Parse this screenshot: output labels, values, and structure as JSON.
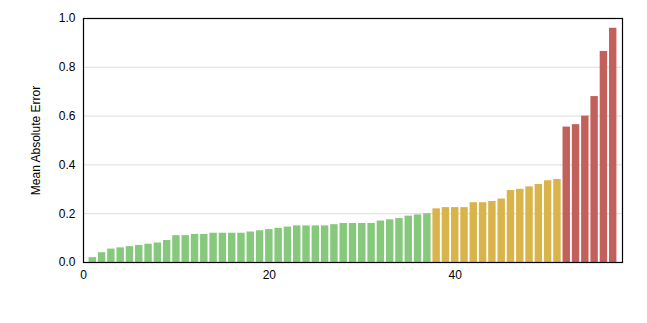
{
  "chart_data": {
    "type": "bar",
    "y_label": "Mean Absolute Error",
    "x": [
      1,
      2,
      3,
      4,
      5,
      6,
      7,
      8,
      9,
      10,
      11,
      12,
      13,
      14,
      15,
      16,
      17,
      18,
      19,
      20,
      21,
      22,
      23,
      24,
      25,
      26,
      27,
      28,
      29,
      30,
      31,
      32,
      33,
      34,
      35,
      36,
      37,
      38,
      39,
      40,
      41,
      42,
      43,
      44,
      45,
      46,
      47,
      48,
      49,
      50,
      51,
      52,
      53,
      54,
      55,
      56,
      57
    ],
    "values": [
      0.02,
      0.04,
      0.055,
      0.06,
      0.065,
      0.07,
      0.075,
      0.08,
      0.09,
      0.11,
      0.11,
      0.115,
      0.115,
      0.12,
      0.12,
      0.12,
      0.12,
      0.125,
      0.13,
      0.135,
      0.14,
      0.145,
      0.15,
      0.15,
      0.15,
      0.15,
      0.155,
      0.16,
      0.16,
      0.16,
      0.16,
      0.17,
      0.175,
      0.18,
      0.19,
      0.195,
      0.2,
      0.22,
      0.225,
      0.225,
      0.225,
      0.245,
      0.245,
      0.25,
      0.26,
      0.295,
      0.3,
      0.31,
      0.32,
      0.335,
      0.34,
      0.555,
      0.565,
      0.6,
      0.68,
      0.865,
      0.96
    ],
    "colors": [
      "#86c97c",
      "#86c97c",
      "#86c97c",
      "#86c97c",
      "#86c97c",
      "#86c97c",
      "#86c97c",
      "#86c97c",
      "#86c97c",
      "#86c97c",
      "#86c97c",
      "#86c97c",
      "#86c97c",
      "#86c97c",
      "#86c97c",
      "#86c97c",
      "#86c97c",
      "#86c97c",
      "#86c97c",
      "#86c97c",
      "#86c97c",
      "#86c97c",
      "#86c97c",
      "#86c97c",
      "#86c97c",
      "#86c97c",
      "#86c97c",
      "#86c97c",
      "#86c97c",
      "#86c97c",
      "#86c97c",
      "#86c97c",
      "#86c97c",
      "#86c97c",
      "#86c97c",
      "#86c97c",
      "#86c97c",
      "#d9b44a",
      "#d9b44a",
      "#d9b44a",
      "#d9b44a",
      "#d9b44a",
      "#d9b44a",
      "#d9b44a",
      "#d9b44a",
      "#d9b44a",
      "#d9b44a",
      "#d9b44a",
      "#d9b44a",
      "#d9b44a",
      "#d9b44a",
      "#c4605b",
      "#c4605b",
      "#c4605b",
      "#c4605b",
      "#c4605b",
      "#c4605b"
    ],
    "xlim": [
      0,
      58
    ],
    "xticks": [
      0,
      20,
      40
    ],
    "ylim": [
      0,
      1
    ],
    "yticks": [
      0,
      0.2,
      0.4,
      0.6,
      0.8,
      1
    ],
    "grid": true
  }
}
